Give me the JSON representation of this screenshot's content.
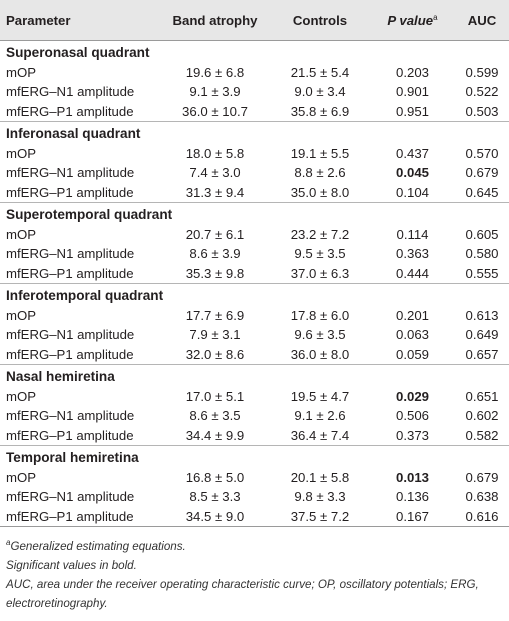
{
  "table": {
    "header": [
      "Parameter",
      "Band atrophy",
      "Controls",
      {
        "text": "P value",
        "sup": "a"
      },
      "AUC"
    ],
    "sections": [
      {
        "title": "Superonasal quadrant",
        "rows": [
          [
            "mOP",
            "19.6 ± 6.8",
            "21.5 ± 5.4",
            "0.203",
            "0.599"
          ],
          [
            "mfERG–N1 amplitude",
            "9.1 ± 3.9",
            "9.0 ± 3.4",
            "0.901",
            "0.522"
          ],
          [
            "mfERG–P1 amplitude",
            "36.0 ± 10.7",
            "35.8 ± 6.9",
            "0.951",
            "0.503"
          ]
        ]
      },
      {
        "title": "Inferonasal quadrant",
        "rows": [
          [
            "mOP",
            "18.0 ± 5.8",
            "19.1 ± 5.5",
            "0.437",
            "0.570"
          ],
          [
            "mfERG–N1 amplitude",
            "7.4 ± 3.0",
            "8.8 ± 2.6",
            {
              "text": "0.045",
              "bold": true
            },
            "0.679"
          ],
          [
            "mfERG–P1 amplitude",
            "31.3 ± 9.4",
            "35.0 ± 8.0",
            "0.104",
            "0.645"
          ]
        ]
      },
      {
        "title": "Superotemporal quadrant",
        "rows": [
          [
            "mOP",
            "20.7 ± 6.1",
            "23.2 ± 7.2",
            "0.114",
            "0.605"
          ],
          [
            "mfERG–N1 amplitude",
            "8.6 ± 3.9",
            "9.5 ± 3.5",
            "0.363",
            "0.580"
          ],
          [
            "mfERG–P1 amplitude",
            "35.3 ± 9.8",
            "37.0 ± 6.3",
            "0.444",
            "0.555"
          ]
        ]
      },
      {
        "title": "Inferotemporal quadrant",
        "rows": [
          [
            "mOP",
            "17.7 ± 6.9",
            "17.8 ± 6.0",
            "0.201",
            "0.613"
          ],
          [
            "mfERG–N1 amplitude",
            "7.9 ± 3.1",
            "9.6 ± 3.5",
            "0.063",
            "0.649"
          ],
          [
            "mfERG–P1 amplitude",
            "32.0 ± 8.6",
            "36.0 ± 8.0",
            "0.059",
            "0.657"
          ]
        ]
      },
      {
        "title": "Nasal hemiretina",
        "rows": [
          [
            "mOP",
            "17.0 ± 5.1",
            "19.5 ± 4.7",
            {
              "text": "0.029",
              "bold": true
            },
            "0.651"
          ],
          [
            "mfERG–N1 amplitude",
            "8.6 ± 3.5",
            "9.1 ± 2.6",
            "0.506",
            "0.602"
          ],
          [
            "mfERG–P1 amplitude",
            "34.4 ± 9.9",
            "36.4 ± 7.4",
            "0.373",
            "0.582"
          ]
        ]
      },
      {
        "title": "Temporal hemiretina",
        "rows": [
          [
            "mOP",
            "16.8 ± 5.0",
            "20.1 ± 5.8",
            {
              "text": "0.013",
              "bold": true
            },
            "0.679"
          ],
          [
            "mfERG–N1 amplitude",
            "8.5 ± 3.3",
            "9.8 ± 3.3",
            "0.136",
            "0.638"
          ],
          [
            "mfERG–P1 amplitude",
            "34.5 ± 9.0",
            "37.5 ± 7.2",
            "0.167",
            "0.616"
          ]
        ]
      }
    ],
    "footnotes": [
      {
        "sup": "a",
        "text": "Generalized estimating equations."
      },
      {
        "text": "Significant values in bold."
      },
      {
        "text": "AUC, area under the receiver operating characteristic curve; OP, oscillatory potentials; ERG, electroretinography."
      }
    ]
  }
}
